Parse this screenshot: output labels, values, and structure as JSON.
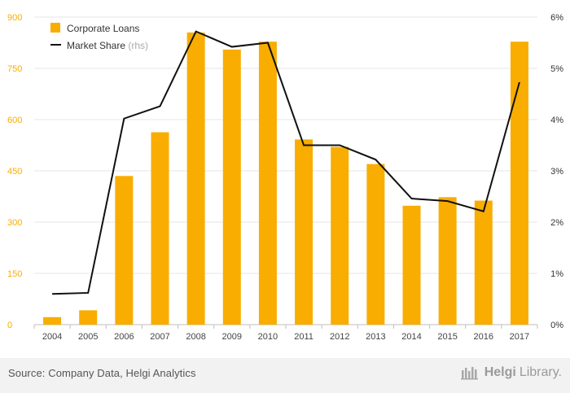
{
  "chart_data": {
    "type": "bar",
    "categories": [
      "2004",
      "2005",
      "2006",
      "2007",
      "2008",
      "2009",
      "2010",
      "2011",
      "2012",
      "2013",
      "2014",
      "2015",
      "2016",
      "2017"
    ],
    "series": [
      {
        "name": "Corporate Loans",
        "type": "bar",
        "axis": "left",
        "color": "#f9ad00",
        "values": [
          22,
          42,
          435,
          563,
          855,
          805,
          828,
          542,
          520,
          470,
          348,
          373,
          363,
          828
        ]
      },
      {
        "name": "Market Share",
        "name_suffix": "(rhs)",
        "type": "line",
        "axis": "right",
        "color": "#111111",
        "values": [
          0.6,
          0.62,
          4.02,
          4.26,
          5.72,
          5.42,
          5.5,
          3.5,
          3.5,
          3.22,
          2.46,
          2.41,
          2.21,
          4.73
        ]
      }
    ],
    "y_left": {
      "ylim": [
        0,
        900
      ],
      "ticks": [
        "0",
        "150",
        "300",
        "450",
        "600",
        "750",
        "900"
      ],
      "color": "#f9ad00"
    },
    "y_right": {
      "ylim": [
        0,
        6
      ],
      "ticks": [
        "0%",
        "1%",
        "2%",
        "3%",
        "4%",
        "5%",
        "6%"
      ]
    },
    "grid": true,
    "legend_position": "top-left"
  },
  "footer": {
    "source": "Source: Company Data, Helgi Analytics",
    "brand_bold": "Helgi",
    "brand_light": "Library."
  }
}
